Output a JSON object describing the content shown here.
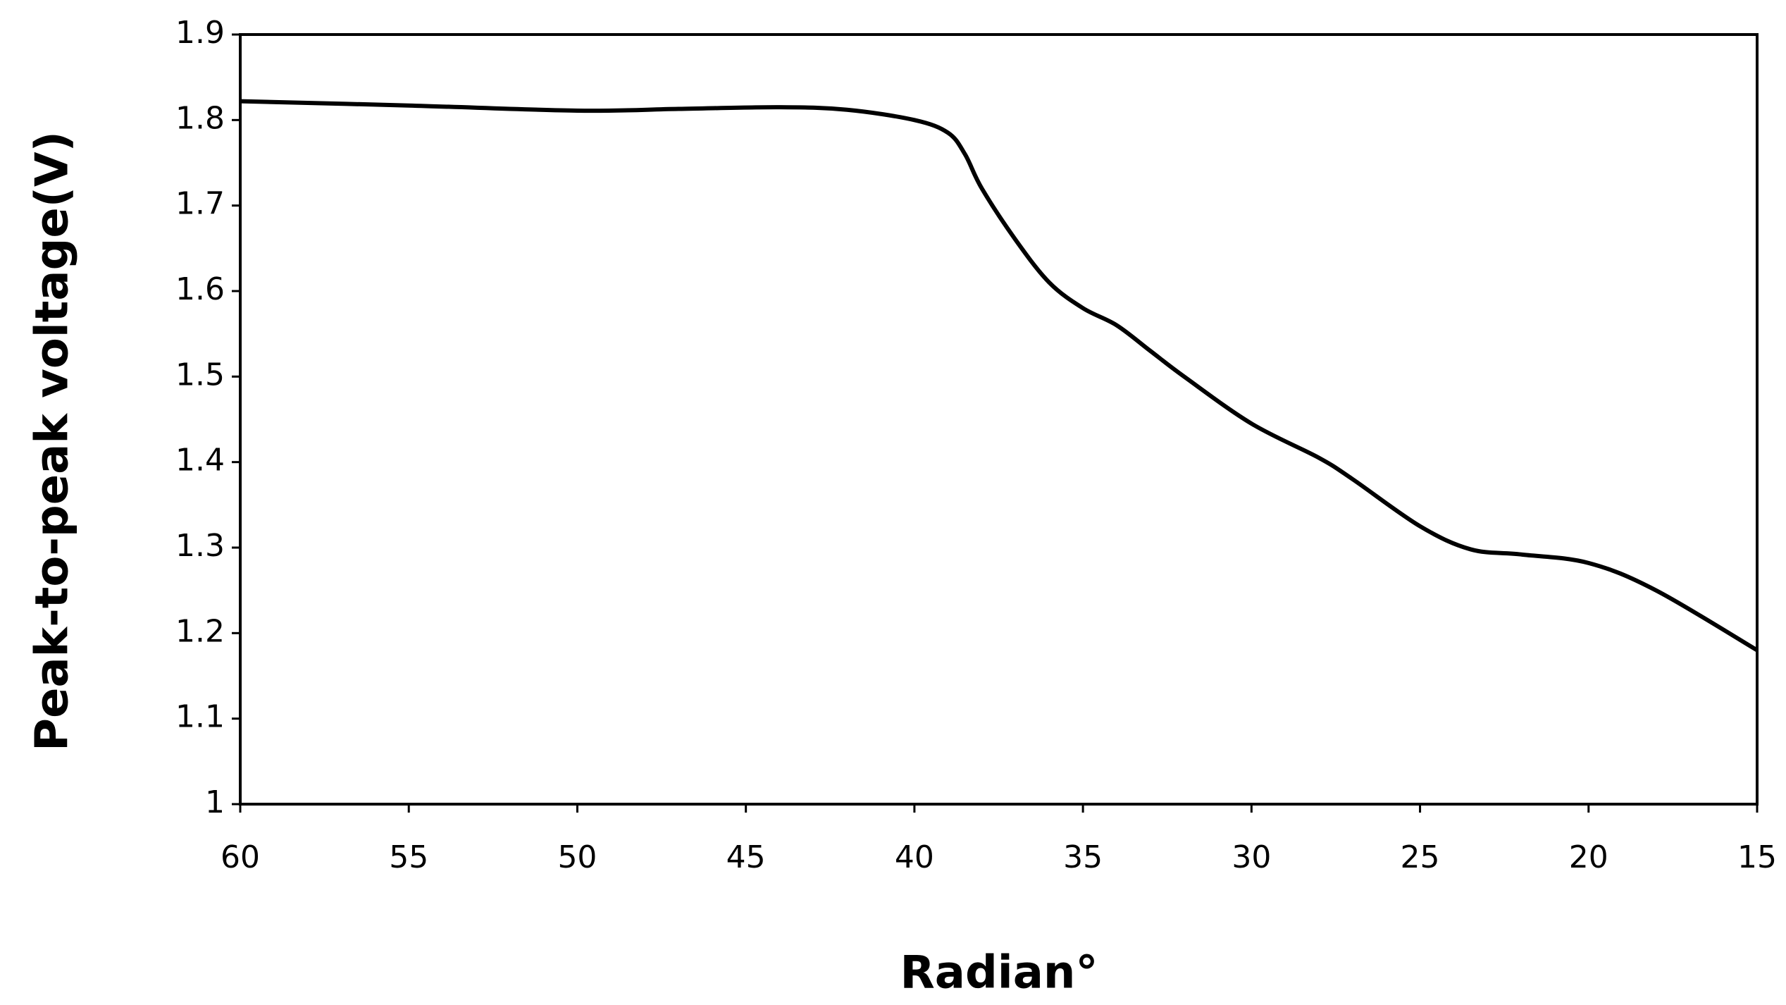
{
  "chart_data": {
    "type": "line",
    "x_label": "Radian°",
    "y_label": "Peak-to-peak voltage(V)",
    "x": [
      60,
      55,
      50,
      47,
      44,
      42,
      40,
      39,
      38.5,
      38,
      37,
      36,
      35,
      34,
      33,
      32,
      30,
      28,
      27,
      25,
      23.5,
      22,
      20,
      18,
      15
    ],
    "series": [
      {
        "color": "#000000",
        "values": [
          1.822,
          1.817,
          1.811,
          1.813,
          1.815,
          1.812,
          1.8,
          1.785,
          1.76,
          1.72,
          1.66,
          1.61,
          1.58,
          1.56,
          1.53,
          1.5,
          1.445,
          1.405,
          1.38,
          1.325,
          1.298,
          1.292,
          1.282,
          1.25,
          1.18
        ]
      }
    ],
    "xlim": [
      60,
      15
    ],
    "xticks": [
      60,
      55,
      50,
      45,
      40,
      35,
      30,
      25,
      20,
      15
    ],
    "ylim": [
      1,
      1.9
    ],
    "yticks": [
      1,
      1.1,
      1.2,
      1.3,
      1.4,
      1.5,
      1.6,
      1.7,
      1.8,
      1.9
    ]
  }
}
